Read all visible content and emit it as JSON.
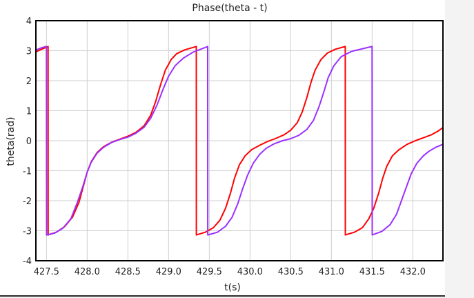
{
  "chart_data": {
    "type": "line",
    "title": "Phase(theta - t)",
    "xlabel": "t(s)",
    "ylabel": "theta(rad)",
    "xlim": [
      427.37,
      432.37
    ],
    "ylim": [
      -4,
      4
    ],
    "xticks": [
      427.5,
      428.0,
      428.5,
      429.0,
      429.5,
      430.0,
      430.5,
      431.0,
      431.5,
      432.0
    ],
    "xtick_labels": [
      "427.5",
      "428.0",
      "428.5",
      "429.0",
      "429.5",
      "430.0",
      "430.5",
      "431.0",
      "431.5",
      "432.0"
    ],
    "yticks": [
      -4,
      -3,
      -2,
      -1,
      0,
      1,
      2,
      3,
      4
    ],
    "ytick_labels": [
      "-4",
      "-3",
      "-2",
      "-1",
      "0",
      "1",
      "2",
      "3",
      "4"
    ],
    "grid": true,
    "legend": "none",
    "series": [
      {
        "color": "#ff0000",
        "points": [
          [
            427.37,
            2.96
          ],
          [
            427.45,
            3.06
          ],
          [
            427.52,
            3.14
          ],
          [
            427.521,
            -3.14
          ],
          [
            427.62,
            -3.05
          ],
          [
            427.72,
            -2.87
          ],
          [
            427.82,
            -2.55
          ],
          [
            427.9,
            -2.05
          ],
          [
            427.96,
            -1.45
          ],
          [
            428.0,
            -1.05
          ],
          [
            428.05,
            -0.7
          ],
          [
            428.12,
            -0.4
          ],
          [
            428.2,
            -0.2
          ],
          [
            428.3,
            -0.05
          ],
          [
            428.4,
            0.05
          ],
          [
            428.5,
            0.15
          ],
          [
            428.6,
            0.28
          ],
          [
            428.7,
            0.5
          ],
          [
            428.78,
            0.85
          ],
          [
            428.84,
            1.3
          ],
          [
            428.9,
            1.85
          ],
          [
            428.96,
            2.35
          ],
          [
            429.03,
            2.7
          ],
          [
            429.1,
            2.9
          ],
          [
            429.2,
            3.03
          ],
          [
            429.34,
            3.14
          ],
          [
            429.341,
            -3.14
          ],
          [
            429.45,
            -3.05
          ],
          [
            429.55,
            -2.9
          ],
          [
            429.63,
            -2.65
          ],
          [
            429.7,
            -2.25
          ],
          [
            429.76,
            -1.75
          ],
          [
            429.81,
            -1.25
          ],
          [
            429.87,
            -0.8
          ],
          [
            429.94,
            -0.5
          ],
          [
            430.02,
            -0.3
          ],
          [
            430.12,
            -0.15
          ],
          [
            430.22,
            -0.02
          ],
          [
            430.32,
            0.08
          ],
          [
            430.42,
            0.2
          ],
          [
            430.5,
            0.35
          ],
          [
            430.58,
            0.6
          ],
          [
            430.64,
            0.95
          ],
          [
            430.7,
            1.45
          ],
          [
            430.75,
            1.95
          ],
          [
            430.8,
            2.35
          ],
          [
            430.87,
            2.7
          ],
          [
            430.95,
            2.92
          ],
          [
            431.05,
            3.05
          ],
          [
            431.17,
            3.14
          ],
          [
            431.171,
            -3.14
          ],
          [
            431.28,
            -3.05
          ],
          [
            431.38,
            -2.9
          ],
          [
            431.46,
            -2.6
          ],
          [
            431.52,
            -2.25
          ],
          [
            431.58,
            -1.75
          ],
          [
            431.63,
            -1.25
          ],
          [
            431.68,
            -0.85
          ],
          [
            431.75,
            -0.5
          ],
          [
            431.83,
            -0.3
          ],
          [
            431.93,
            -0.12
          ],
          [
            432.03,
            0.0
          ],
          [
            432.13,
            0.1
          ],
          [
            432.23,
            0.2
          ],
          [
            432.31,
            0.32
          ],
          [
            432.37,
            0.44
          ]
        ]
      },
      {
        "color": "#9b30ff",
        "points": [
          [
            427.37,
            3.02
          ],
          [
            427.44,
            3.1
          ],
          [
            427.5,
            3.14
          ],
          [
            427.501,
            -3.14
          ],
          [
            427.6,
            -3.08
          ],
          [
            427.7,
            -2.92
          ],
          [
            427.8,
            -2.6
          ],
          [
            427.88,
            -2.05
          ],
          [
            427.95,
            -1.5
          ],
          [
            428.0,
            -1.05
          ],
          [
            428.05,
            -0.72
          ],
          [
            428.12,
            -0.42
          ],
          [
            428.2,
            -0.22
          ],
          [
            428.3,
            -0.06
          ],
          [
            428.4,
            0.04
          ],
          [
            428.5,
            0.12
          ],
          [
            428.6,
            0.25
          ],
          [
            428.7,
            0.45
          ],
          [
            428.78,
            0.75
          ],
          [
            428.86,
            1.2
          ],
          [
            428.93,
            1.7
          ],
          [
            429.0,
            2.15
          ],
          [
            429.08,
            2.5
          ],
          [
            429.18,
            2.75
          ],
          [
            429.3,
            2.95
          ],
          [
            429.48,
            3.14
          ],
          [
            429.481,
            -3.14
          ],
          [
            429.6,
            -3.05
          ],
          [
            429.7,
            -2.85
          ],
          [
            429.78,
            -2.55
          ],
          [
            429.85,
            -2.1
          ],
          [
            429.91,
            -1.6
          ],
          [
            429.97,
            -1.15
          ],
          [
            430.04,
            -0.75
          ],
          [
            430.12,
            -0.45
          ],
          [
            430.2,
            -0.25
          ],
          [
            430.3,
            -0.1
          ],
          [
            430.4,
            0.0
          ],
          [
            430.5,
            0.07
          ],
          [
            430.6,
            0.18
          ],
          [
            430.7,
            0.38
          ],
          [
            430.78,
            0.68
          ],
          [
            430.85,
            1.15
          ],
          [
            430.91,
            1.65
          ],
          [
            430.96,
            2.1
          ],
          [
            431.03,
            2.5
          ],
          [
            431.12,
            2.8
          ],
          [
            431.25,
            2.98
          ],
          [
            431.5,
            3.14
          ],
          [
            431.501,
            -3.14
          ],
          [
            431.62,
            -3.02
          ],
          [
            431.72,
            -2.8
          ],
          [
            431.8,
            -2.45
          ],
          [
            431.86,
            -2.0
          ],
          [
            431.92,
            -1.55
          ],
          [
            431.98,
            -1.1
          ],
          [
            432.05,
            -0.75
          ],
          [
            432.13,
            -0.5
          ],
          [
            432.2,
            -0.35
          ],
          [
            432.28,
            -0.22
          ],
          [
            432.37,
            -0.12
          ]
        ]
      }
    ]
  }
}
